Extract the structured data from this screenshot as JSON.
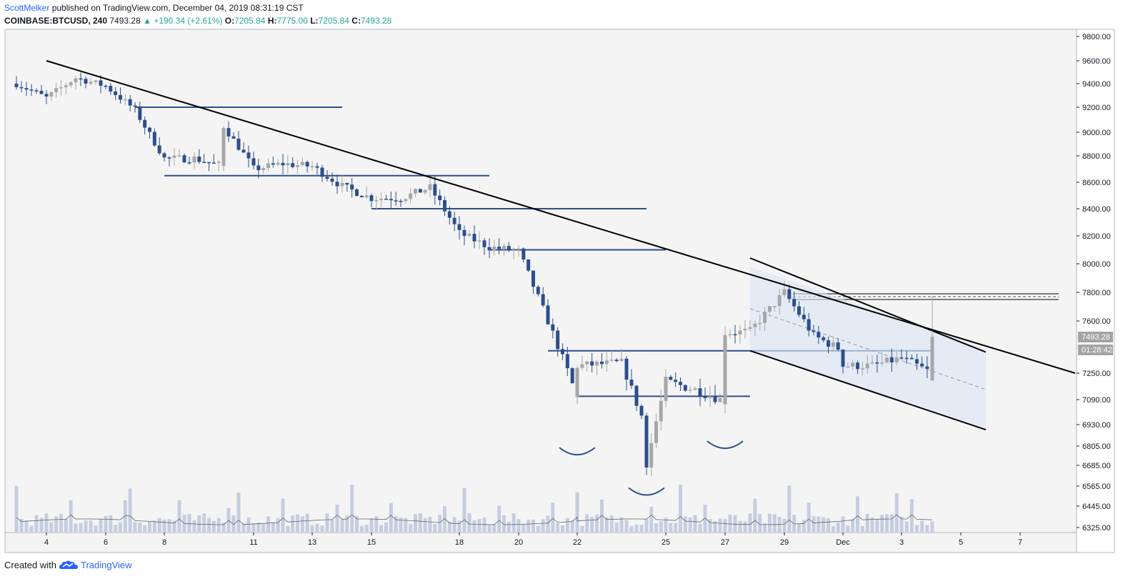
{
  "header": {
    "author": "ScottMelker",
    "published_text": "published on TradingView.com, December 04, 2019 08:31:19 CST",
    "symbol": "COINBASE:BTCUSD, 240",
    "last": "7493.28",
    "change": "▲ +190.34 (+2.61%)",
    "o_label": "O:",
    "o_value": "7205.84",
    "h_label": "H:",
    "h_value": "7775.00",
    "l_label": "L:",
    "l_value": "7205.84",
    "c_label": "C:",
    "c_value": "7493.28"
  },
  "footer": {
    "created_with": "Created with",
    "brand": "TradingView"
  },
  "price_tags": {
    "last_price": "7493.28",
    "countdown": "01:28:42"
  },
  "colors": {
    "up_candle": "#a7a7a7",
    "down_candle": "#2c4e8c",
    "level_line": "#2c4e8c",
    "trendline": "#000000",
    "channel_fill": "#dce6f5",
    "volume": "#c5cee0",
    "plot_bg": "#f4f4f4"
  },
  "chart_data": {
    "type": "candlestick",
    "title": "",
    "xlabel": "",
    "ylabel": "",
    "x_tick_labels": [
      "4",
      "6",
      "8",
      "11",
      "13",
      "15",
      "18",
      "20",
      "22",
      "25",
      "27",
      "29",
      "Dec",
      "3",
      "5",
      "7"
    ],
    "y_tick_labels": [
      "9800.00",
      "9600.00",
      "9400.00",
      "9200.00",
      "9000.00",
      "8800.00",
      "8600.00",
      "8400.00",
      "8200.00",
      "8000.00",
      "7800.00",
      "7600.00",
      "7250.00",
      "7090.00",
      "6930.00",
      "6805.00",
      "6685.00",
      "6565.00",
      "6445.00",
      "6325.00"
    ],
    "grid": false,
    "last_price": 7493.28,
    "candle_close_path": [
      [
        "Nov 3",
        9400
      ],
      [
        "Nov 4",
        9280
      ],
      [
        "Nov 5",
        9450
      ],
      [
        "Nov 6",
        9380
      ],
      [
        "Nov 7",
        9180
      ],
      [
        "Nov 8",
        8780
      ],
      [
        "Nov 9",
        8780
      ],
      [
        "Nov 10",
        8720
      ],
      [
        "Nov 10",
        9050
      ],
      [
        "Nov 11",
        8700
      ],
      [
        "Nov 12",
        8740
      ],
      [
        "Nov 13",
        8720
      ],
      [
        "Nov 14",
        8570
      ],
      [
        "Nov 15",
        8480
      ],
      [
        "Nov 16",
        8480
      ],
      [
        "Nov 17",
        8560
      ],
      [
        "Nov 18",
        8220
      ],
      [
        "Nov 19",
        8120
      ],
      [
        "Nov 20",
        8090
      ],
      [
        "Nov 21",
        7600
      ],
      [
        "Nov 22",
        7100
      ],
      [
        "Nov 22",
        7300
      ],
      [
        "Nov 23",
        7320
      ],
      [
        "Nov 24",
        6900
      ],
      [
        "Nov 24",
        6700
      ],
      [
        "Nov 25",
        7200
      ],
      [
        "Nov 26",
        7150
      ],
      [
        "Nov 27",
        7080
      ],
      [
        "Nov 27",
        7520
      ],
      [
        "Nov 28",
        7530
      ],
      [
        "Nov 29",
        7800
      ],
      [
        "Nov 30",
        7500
      ],
      [
        "Dec 1",
        7400
      ],
      [
        "Dec 1",
        7300
      ],
      [
        "Dec 2",
        7300
      ],
      [
        "Dec 3",
        7350
      ],
      [
        "Dec 4",
        7250
      ],
      [
        "Dec 4",
        7493.28
      ]
    ],
    "horizontal_levels": [
      9200,
      8650,
      8400,
      8100,
      7400,
      7110
    ],
    "resistance_zone": [
      7750,
      7790
    ],
    "trendline": [
      [
        "Nov 4",
        9600
      ],
      [
        "Dec 8",
        7250
      ]
    ],
    "descending_channel": {
      "upper": [
        [
          "Nov 28",
          7980
        ],
        [
          "Dec 6",
          7410
        ]
      ],
      "lower": [
        [
          "Nov 28",
          7400
        ],
        [
          "Dec 6",
          6900
        ]
      ]
    }
  }
}
